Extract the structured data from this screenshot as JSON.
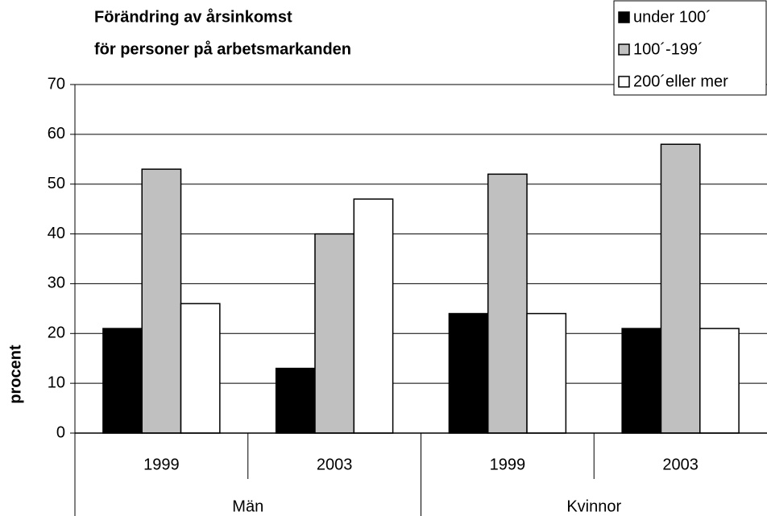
{
  "chart_data": {
    "type": "bar",
    "title": [
      "Förändring av årsinkomst",
      "för personer på arbetsmarkanden"
    ],
    "y_label": "procent",
    "categories": [
      "1999",
      "2003",
      "1999",
      "2003"
    ],
    "groups": [
      "Män",
      "Kvinnor"
    ],
    "series": [
      {
        "name": "under 100´",
        "color": "#000000",
        "values": [
          21,
          13,
          24,
          21
        ]
      },
      {
        "name": "100´-199´",
        "color": "#c0c0c0",
        "values": [
          53,
          40,
          52,
          58
        ]
      },
      {
        "name": "200´eller mer",
        "color": "#ffffff",
        "values": [
          26,
          47,
          24,
          21
        ]
      }
    ],
    "ylim": [
      0,
      70
    ],
    "yticks": [
      0,
      10,
      20,
      30,
      40,
      50,
      60,
      70
    ],
    "grid": true,
    "legend": "top-right"
  }
}
